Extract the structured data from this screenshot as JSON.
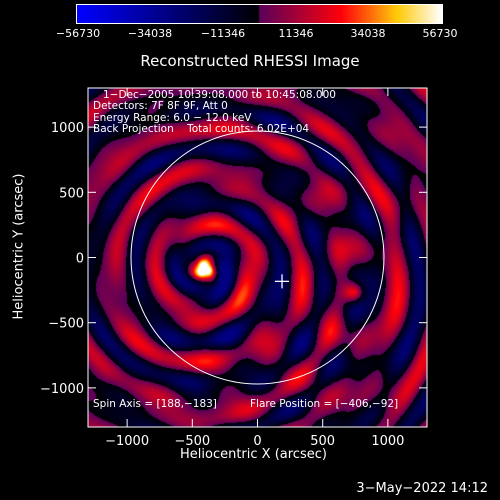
{
  "colorbar": {
    "ticks": [
      "−56730",
      "−34038",
      "−11346",
      "11346",
      "34038",
      "56730"
    ],
    "tick_values": [
      -56730,
      -34038,
      -11346,
      11346,
      34038,
      56730
    ],
    "colors": [
      "#0000ff",
      "#000000",
      "#ff0000",
      "#ffff00",
      "#ffffff"
    ]
  },
  "chart_data": {
    "type": "heatmap",
    "title": "Reconstructed RHESSI Image",
    "xlabel": "Heliocentric X (arcsec)",
    "ylabel": "Heliocentric Y (arcsec)",
    "xlim": [
      -1300,
      1300
    ],
    "ylim": [
      -1300,
      1300
    ],
    "x_ticks": [
      "−1000",
      "−500",
      "0",
      "500",
      "1000"
    ],
    "x_tick_values": [
      -1000,
      -500,
      0,
      500,
      1000
    ],
    "y_ticks": [
      "1000",
      "500",
      "0",
      "−500",
      "−1000"
    ],
    "y_tick_values": [
      1000,
      500,
      0,
      -500,
      -1000
    ],
    "info_lines": [
      "1−Dec−2005 10:39:08.000 to 10:45:08.000",
      "Detectors: 7F 8F 9F, Att 0",
      "Energy Range: 6.0 − 12.0 keV",
      "Back Projection    Total counts: 6.02E+04"
    ],
    "spin_axis": "Spin Axis = [188,−183]",
    "flare_position": "Flare Position = [−406,−92]",
    "sources": [
      {
        "x": -406,
        "y": -92,
        "strength": 1.0
      },
      {
        "x": 740,
        "y": -270,
        "strength": 0.6
      }
    ],
    "spin_axis_point": {
      "x": 188,
      "y": -183
    },
    "solar_disk_radius": 970,
    "colors": {
      "disk": "#ffffff",
      "background": "#000000"
    }
  },
  "footer": {
    "date": "3−May−2022 14:12"
  }
}
